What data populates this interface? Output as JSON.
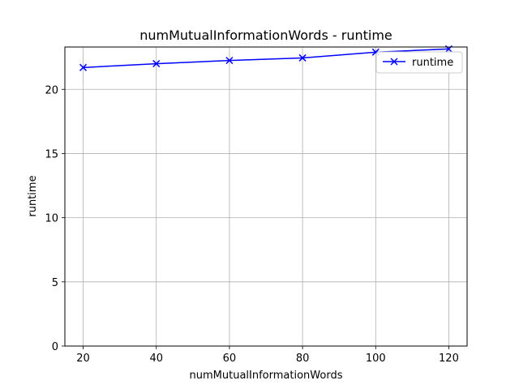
{
  "chart_data": {
    "type": "line",
    "title": "numMutualInformationWords - runtime",
    "xlabel": "numMutualInformationWords",
    "ylabel": "runtime",
    "x": [
      20,
      40,
      60,
      80,
      100,
      120
    ],
    "series": [
      {
        "name": "runtime",
        "values": [
          21.7,
          22.0,
          22.25,
          22.45,
          22.9,
          23.15
        ],
        "color": "#0000ff",
        "marker": "x"
      }
    ],
    "xlim": [
      15,
      125
    ],
    "ylim": [
      0,
      23.3
    ],
    "xticks": [
      20,
      40,
      60,
      80,
      100,
      120
    ],
    "yticks": [
      0,
      5,
      10,
      15,
      20
    ],
    "grid": true,
    "legend": "top-right"
  }
}
